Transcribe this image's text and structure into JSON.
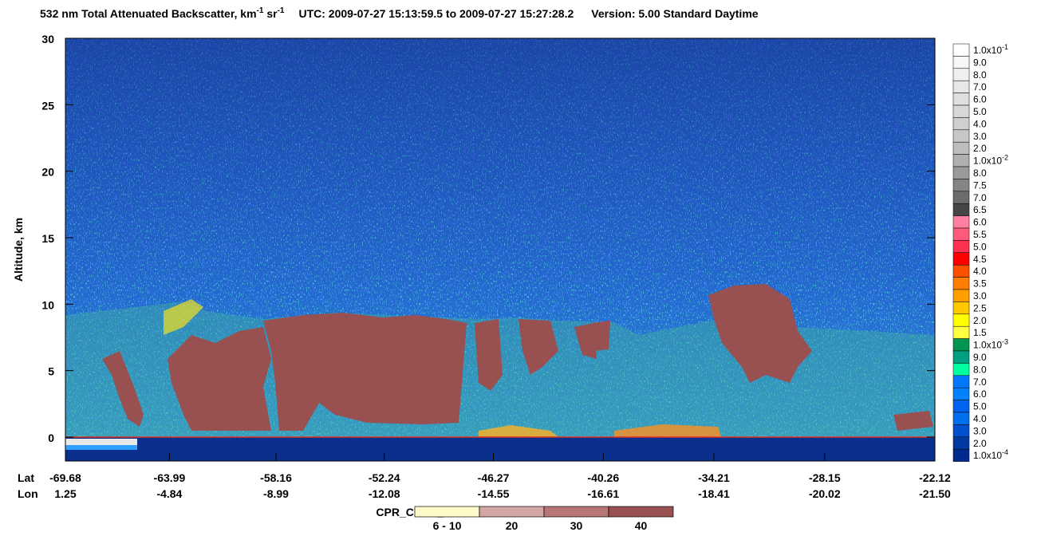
{
  "chart_data": {
    "type": "heatmap",
    "title": {
      "part1": "532 nm Total Attenuated Backscatter, km",
      "sup1": "-1",
      "part2": " sr",
      "sup2": "-1",
      "utc": "UTC:  2009-07-27 15:13:59.5  to  2009-07-27 15:27:28.2",
      "version": "Version: 5.00  Standard  Daytime"
    },
    "y_label": "Altitude, km",
    "ylim": [
      -1.8,
      30
    ],
    "yticks": [
      0,
      5,
      10,
      15,
      20,
      25,
      30
    ],
    "lat_label": "Lat",
    "lon_label": "Lon",
    "xlim": [
      -69.68,
      -22.12
    ],
    "xticks": [
      -69.68,
      -63.99,
      -58.16,
      -52.24,
      -46.27,
      -40.26,
      -34.21,
      -28.15,
      -22.12
    ],
    "lon_ticks": [
      "1.25",
      "-4.84",
      "-8.99",
      "-12.08",
      "-14.55",
      "-16.61",
      "-18.41",
      "-20.02",
      "-21.50"
    ],
    "colorbar": [
      {
        "label": "1.0x10",
        "exp": "-1",
        "color": "#ffffff"
      },
      {
        "label": "9.0",
        "color": "#f7f7f7"
      },
      {
        "label": "8.0",
        "color": "#efefef"
      },
      {
        "label": "7.0",
        "color": "#e7e7e7"
      },
      {
        "label": "6.0",
        "color": "#dfdfdf"
      },
      {
        "label": "5.0",
        "color": "#d7d7d7"
      },
      {
        "label": "4.0",
        "color": "#cfcfcf"
      },
      {
        "label": "3.0",
        "color": "#c7c7c7"
      },
      {
        "label": "2.0",
        "color": "#bdbdbd"
      },
      {
        "label": "1.0x10",
        "exp": "-2",
        "color": "#b0b0b0"
      },
      {
        "label": "8.0",
        "color": "#9a9a9a"
      },
      {
        "label": "7.5",
        "color": "#858585"
      },
      {
        "label": "7.0",
        "color": "#6c6c6c"
      },
      {
        "label": "6.5",
        "color": "#464646"
      },
      {
        "label": "6.0",
        "color": "#ff80a0"
      },
      {
        "label": "5.5",
        "color": "#ff5a7c"
      },
      {
        "label": "5.0",
        "color": "#ff3050"
      },
      {
        "label": "4.5",
        "color": "#ff0000"
      },
      {
        "label": "4.0",
        "color": "#ff5000"
      },
      {
        "label": "3.5",
        "color": "#ff7d00"
      },
      {
        "label": "3.0",
        "color": "#ffa000"
      },
      {
        "label": "2.5",
        "color": "#ffc800"
      },
      {
        "label": "2.0",
        "color": "#ffff00"
      },
      {
        "label": "1.5",
        "color": "#ffff40"
      },
      {
        "label": "1.0x10",
        "exp": "-3",
        "color": "#009650"
      },
      {
        "label": "9.0",
        "color": "#00a082"
      },
      {
        "label": "8.0",
        "color": "#00ffa0"
      },
      {
        "label": "7.0",
        "color": "#0078ff"
      },
      {
        "label": "6.0",
        "color": "#0082ff"
      },
      {
        "label": "5.0",
        "color": "#0064f0"
      },
      {
        "label": "4.0",
        "color": "#0070ee"
      },
      {
        "label": "3.0",
        "color": "#0050d0"
      },
      {
        "label": "2.0",
        "color": "#003aa0"
      },
      {
        "label": "1.0x10",
        "exp": "-4",
        "color": "#002a8c"
      }
    ],
    "cpr_legend": {
      "title": "CPR_Cloud_mask",
      "entries": [
        {
          "label": "6 - 10",
          "color": "#fffac8"
        },
        {
          "label": "20",
          "color": "#d4a6a6"
        },
        {
          "label": "30",
          "color": "#b87676"
        },
        {
          "label": "40",
          "color": "#985050"
        }
      ]
    }
  }
}
